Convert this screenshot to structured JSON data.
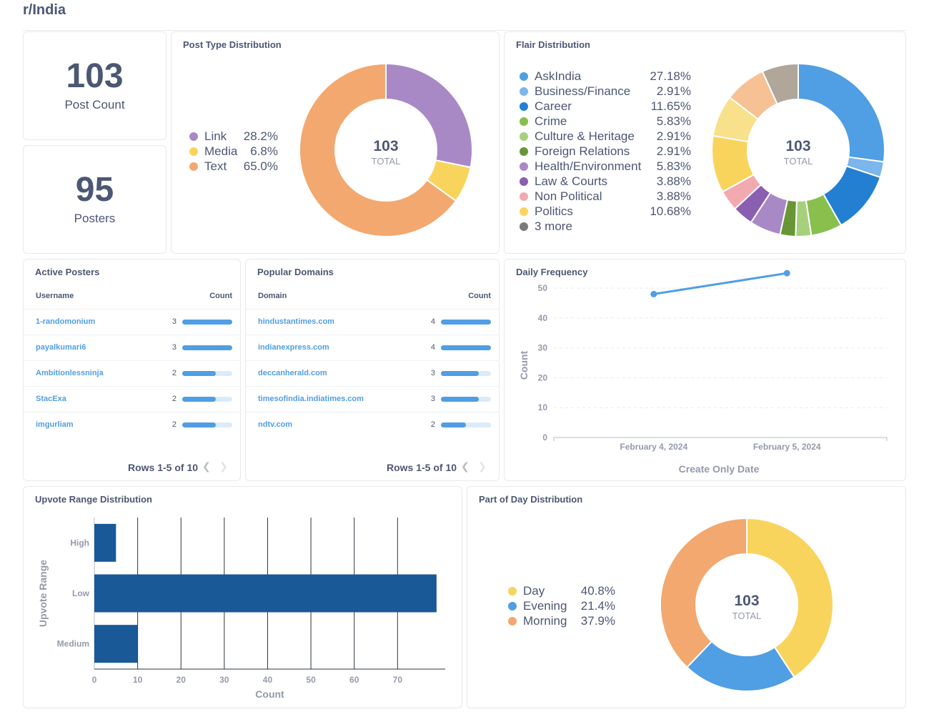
{
  "page": {
    "title": "r/India"
  },
  "scalars": [
    {
      "value": "103",
      "label": "Post Count"
    },
    {
      "value": "95",
      "label": "Posters"
    }
  ],
  "post_type": {
    "title": "Post Type Distribution",
    "total_value": "103",
    "total_label": "TOTAL",
    "legend": [
      {
        "name": "Link",
        "pct": "28.2%",
        "color": "#a989c5"
      },
      {
        "name": "Media",
        "pct": "6.8%",
        "color": "#f9d45c"
      },
      {
        "name": "Text",
        "pct": "65.0%",
        "color": "#f2a86f"
      }
    ]
  },
  "flair": {
    "title": "Flair Distribution",
    "total_value": "103",
    "total_label": "TOTAL",
    "legend": [
      {
        "name": "AskIndia",
        "pct": "27.18%",
        "color": "#509ee3"
      },
      {
        "name": "Business/Finance",
        "pct": "2.91%",
        "color": "#7bb6ec"
      },
      {
        "name": "Career",
        "pct": "11.65%",
        "color": "#227fd2"
      },
      {
        "name": "Crime",
        "pct": "5.83%",
        "color": "#88bf4d"
      },
      {
        "name": "Culture & Heritage",
        "pct": "2.91%",
        "color": "#a7d07c"
      },
      {
        "name": "Foreign Relations",
        "pct": "2.91%",
        "color": "#689636"
      },
      {
        "name": "Health/Environment",
        "pct": "5.83%",
        "color": "#a989c5"
      },
      {
        "name": "Law & Courts",
        "pct": "3.88%",
        "color": "#8a5eb0"
      },
      {
        "name": "Non Political",
        "pct": "3.88%",
        "color": "#f2a9b0"
      },
      {
        "name": "Politics",
        "pct": "10.68%",
        "color": "#f9d45c"
      },
      {
        "name": "3 more",
        "pct": "",
        "color": "#7a7a7a"
      }
    ]
  },
  "active_posters": {
    "title": "Active Posters",
    "col_user": "Username",
    "col_count": "Count",
    "rows": [
      {
        "name": "1-randomonium",
        "count": "3",
        "value": 3
      },
      {
        "name": "payalkumari6",
        "count": "3",
        "value": 3
      },
      {
        "name": "Ambitionlessninja",
        "count": "2",
        "value": 2
      },
      {
        "name": "StacExa",
        "count": "2",
        "value": 2
      },
      {
        "name": "imgurliam",
        "count": "2",
        "value": 2
      }
    ],
    "max": 3,
    "pager": "Rows 1-5 of 10"
  },
  "popular_domains": {
    "title": "Popular Domains",
    "col_domain": "Domain",
    "col_count": "Count",
    "rows": [
      {
        "name": "hindustantimes.com",
        "count": "4",
        "value": 4
      },
      {
        "name": "indianexpress.com",
        "count": "4",
        "value": 4
      },
      {
        "name": "deccanherald.com",
        "count": "3",
        "value": 3
      },
      {
        "name": "timesofindia.indiatimes.com",
        "count": "3",
        "value": 3
      },
      {
        "name": "ndtv.com",
        "count": "2",
        "value": 2
      }
    ],
    "max": 4,
    "pager": "Rows 1-5 of 10"
  },
  "daily_frequency": {
    "title": "Daily Frequency"
  },
  "upvote_range": {
    "title": "Upvote Range Distribution"
  },
  "part_of_day": {
    "title": "Part of Day Distribution",
    "total_value": "103",
    "total_label": "TOTAL",
    "legend": [
      {
        "name": "Day",
        "pct": "40.8%",
        "color": "#f9d45c"
      },
      {
        "name": "Evening",
        "pct": "21.4%",
        "color": "#509ee3"
      },
      {
        "name": "Morning",
        "pct": "37.9%",
        "color": "#f2a86f"
      }
    ]
  },
  "chart_data": [
    {
      "type": "pie",
      "title": "Post Type Distribution",
      "categories": [
        "Link",
        "Media",
        "Text"
      ],
      "values": [
        28.2,
        6.8,
        65.0
      ],
      "total": 103
    },
    {
      "type": "pie",
      "title": "Flair Distribution",
      "categories": [
        "AskIndia",
        "Business/Finance",
        "Career",
        "Crime",
        "Culture & Heritage",
        "Foreign Relations",
        "Health/Environment",
        "Law & Courts",
        "Non Political",
        "Politics",
        "3 more"
      ],
      "values": [
        27.18,
        2.91,
        11.65,
        5.83,
        2.91,
        2.91,
        5.83,
        3.88,
        3.88,
        10.68,
        22.34
      ],
      "slice_colors": [
        "#509ee3",
        "#7bb6ec",
        "#227fd2",
        "#88bf4d",
        "#a7d07c",
        "#689636",
        "#a989c5",
        "#8a5eb0",
        "#f2a9b0",
        "#f9d45c",
        "#f9e08a",
        "#f7c196",
        "#b0a69a"
      ],
      "slice_values": [
        27.18,
        2.91,
        11.65,
        5.83,
        2.91,
        2.91,
        5.83,
        3.88,
        3.88,
        10.68,
        7.77,
        7.77,
        6.8
      ],
      "total": 103
    },
    {
      "type": "line",
      "title": "Daily Frequency",
      "x": [
        "February 4, 2024",
        "February 5, 2024"
      ],
      "values": [
        48,
        55
      ],
      "xlabel": "Create Only Date",
      "ylabel": "Count",
      "yticks": [
        0,
        10,
        20,
        30,
        40,
        50
      ],
      "ylim": [
        0,
        56
      ],
      "color": "#509ee3"
    },
    {
      "type": "bar",
      "orientation": "horizontal",
      "title": "Upvote Range Distribution",
      "categories": [
        "High",
        "Low",
        "Medium"
      ],
      "values": [
        5,
        79,
        10
      ],
      "xlabel": "Count",
      "ylabel": "Upvote Range",
      "xticks": [
        0,
        10,
        20,
        30,
        40,
        50,
        60,
        70
      ],
      "xlim": [
        0,
        81
      ],
      "color": "#1a5997"
    },
    {
      "type": "pie",
      "title": "Part of Day Distribution",
      "categories": [
        "Day",
        "Evening",
        "Morning"
      ],
      "values": [
        40.8,
        21.4,
        37.9
      ],
      "total": 103
    }
  ]
}
